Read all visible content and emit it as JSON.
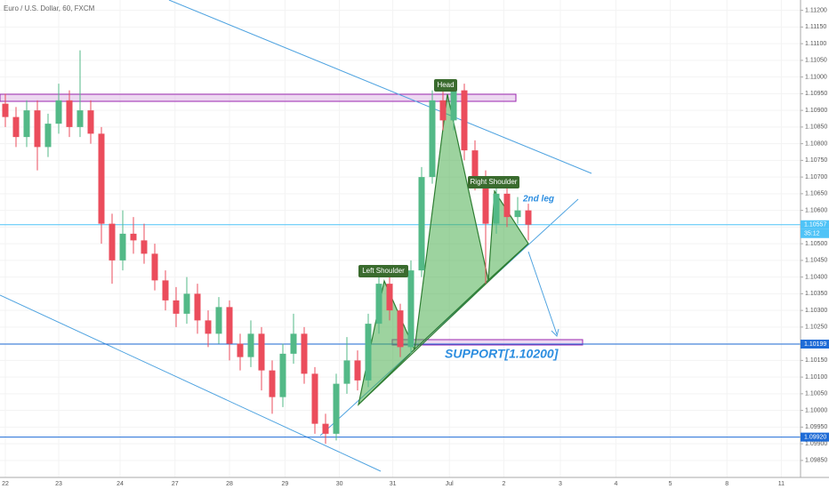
{
  "chart_data": {
    "type": "candlestick",
    "title": "Euro / U.S. Dollar, 60, FXCM",
    "x": [
      0,
      1,
      2,
      3,
      4,
      5,
      6,
      7,
      8,
      9,
      10,
      11,
      12,
      13,
      14,
      15,
      16,
      17,
      18,
      19,
      20,
      21,
      22,
      23,
      24,
      25,
      26,
      27,
      28,
      29,
      30,
      31,
      32,
      33,
      34,
      35,
      36,
      37,
      38,
      39,
      40,
      41,
      42,
      43,
      44,
      45,
      46,
      47,
      48,
      49
    ],
    "open": [
      1.1092,
      1.1088,
      1.1082,
      1.109,
      1.1079,
      1.1086,
      1.1093,
      1.1085,
      1.109,
      1.1083,
      1.1056,
      1.1045,
      1.1053,
      1.1051,
      1.1047,
      1.1039,
      1.1033,
      1.1029,
      1.1035,
      1.1027,
      1.1023,
      1.1031,
      1.102,
      1.1016,
      1.1023,
      1.1012,
      1.1004,
      1.1017,
      1.1023,
      1.1011,
      1.0996,
      1.0993,
      1.1008,
      1.1015,
      1.1009,
      1.1026,
      1.1038,
      1.103,
      1.1019,
      1.1042,
      1.107,
      1.1093,
      1.1087,
      1.1096,
      1.1078,
      1.107,
      1.1056,
      1.1065,
      1.1058,
      1.106
    ],
    "high": [
      1.1095,
      1.1091,
      1.1093,
      1.1093,
      1.1089,
      1.1098,
      1.1096,
      1.1108,
      1.1093,
      1.1085,
      1.1059,
      1.106,
      1.1058,
      1.1056,
      1.105,
      1.1042,
      1.1037,
      1.104,
      1.1038,
      1.103,
      1.1034,
      1.1033,
      1.1023,
      1.1027,
      1.1025,
      1.1015,
      1.102,
      1.1029,
      1.1025,
      1.1013,
      1.0999,
      1.1011,
      1.1022,
      1.1018,
      1.1029,
      1.1041,
      1.104,
      1.1032,
      1.1045,
      1.1073,
      1.1096,
      1.1098,
      1.1099,
      1.1098,
      1.1081,
      1.1072,
      1.1068,
      1.1067,
      1.1064,
      1.1062
    ],
    "low": [
      1.1085,
      1.1079,
      1.1079,
      1.1072,
      1.1076,
      1.1083,
      1.1082,
      1.1082,
      1.108,
      1.105,
      1.1038,
      1.1042,
      1.1047,
      1.1044,
      1.1036,
      1.103,
      1.1025,
      1.1026,
      1.1023,
      1.1019,
      1.102,
      1.1015,
      1.1012,
      1.1013,
      1.1006,
      1.0999,
      1.1001,
      1.1014,
      1.1008,
      1.0993,
      1.099,
      1.0991,
      1.1005,
      1.1006,
      1.1007,
      1.1023,
      1.1027,
      1.1016,
      1.1017,
      1.104,
      1.1068,
      1.1084,
      1.1084,
      1.1075,
      1.1066,
      1.1038,
      1.1053,
      1.1055,
      1.1056,
      1.1051
    ],
    "close": [
      1.1088,
      1.1082,
      1.109,
      1.1079,
      1.1086,
      1.1093,
      1.1085,
      1.109,
      1.1083,
      1.1056,
      1.1045,
      1.1053,
      1.1051,
      1.1047,
      1.1039,
      1.1033,
      1.1029,
      1.1035,
      1.1027,
      1.1023,
      1.1031,
      1.102,
      1.1016,
      1.1023,
      1.1012,
      1.1004,
      1.1017,
      1.1023,
      1.1011,
      1.0996,
      1.0993,
      1.1008,
      1.1015,
      1.1009,
      1.1026,
      1.1038,
      1.103,
      1.1019,
      1.1042,
      1.107,
      1.1093,
      1.1087,
      1.1096,
      1.1078,
      1.107,
      1.1056,
      1.1065,
      1.1058,
      1.106,
      1.10557
    ],
    "up_color": "#53b987",
    "down_color": "#eb4d5c",
    "xlim": [
      -0.5,
      74.5
    ],
    "ylim": [
      1.09799,
      1.11231
    ],
    "xticks": [
      {
        "value": 0,
        "label": "22"
      },
      {
        "value": 5,
        "label": "23"
      },
      {
        "value": 10.75,
        "label": "24"
      },
      {
        "value": 15.9,
        "label": "27"
      },
      {
        "value": 21,
        "label": "28"
      },
      {
        "value": 26.2,
        "label": "29"
      },
      {
        "value": 31.3,
        "label": "30"
      },
      {
        "value": 36.3,
        "label": "31"
      },
      {
        "value": 41.6,
        "label": "Jul"
      },
      {
        "value": 46.7,
        "label": "2"
      },
      {
        "value": 52,
        "label": "3"
      },
      {
        "value": 57.2,
        "label": "4"
      },
      {
        "value": 62.3,
        "label": "5"
      },
      {
        "value": 67.6,
        "label": "8"
      },
      {
        "value": 72.7,
        "label": "11"
      }
    ],
    "yticks": [
      {
        "value": 1.0985,
        "label": "1.09850"
      },
      {
        "value": 1.099,
        "label": "1.09900"
      },
      {
        "value": 1.0995,
        "label": "1.09950"
      },
      {
        "value": 1.1,
        "label": "1.10000"
      },
      {
        "value": 1.1005,
        "label": "1.10050"
      },
      {
        "value": 1.101,
        "label": "1.10100"
      },
      {
        "value": 1.1015,
        "label": "1.10150"
      },
      {
        "value": 1.102,
        "label": "1.10200"
      },
      {
        "value": 1.1025,
        "label": "1.10250"
      },
      {
        "value": 1.103,
        "label": "1.10300"
      },
      {
        "value": 1.1035,
        "label": "1.10350"
      },
      {
        "value": 1.104,
        "label": "1.10400"
      },
      {
        "value": 1.1045,
        "label": "1.10450"
      },
      {
        "value": 1.105,
        "label": "1.10500"
      },
      {
        "value": 1.1055,
        "label": "1.10550"
      },
      {
        "value": 1.106,
        "label": "1.10600"
      },
      {
        "value": 1.1065,
        "label": "1.10650"
      },
      {
        "value": 1.107,
        "label": "1.10700"
      },
      {
        "value": 1.1075,
        "label": "1.10750"
      },
      {
        "value": 1.108,
        "label": "1.10800"
      },
      {
        "value": 1.1085,
        "label": "1.10850"
      },
      {
        "value": 1.109,
        "label": "1.10900"
      },
      {
        "value": 1.1095,
        "label": "1.10950"
      },
      {
        "value": 1.11,
        "label": "1.11000"
      },
      {
        "value": 1.1105,
        "label": "1.11050"
      },
      {
        "value": 1.111,
        "label": "1.11100"
      },
      {
        "value": 1.1115,
        "label": "1.11150"
      },
      {
        "value": 1.112,
        "label": "1.11200"
      }
    ],
    "price_lines": [
      {
        "value": 1.10557,
        "color": "#4fc3f7"
      },
      {
        "value": 1.10199,
        "color": "#1e6bd6"
      },
      {
        "value": {
          "value": 1.0992,
          "label": "1.09920"
        },
        "color": "#1e6bd6"
      }
    ],
    "countdown": "35:12",
    "annotations": {
      "head": "Head",
      "left_shoulder": "Left Shoulder",
      "right_shoulder": "Right Shoulder",
      "second_leg": "2nd leg",
      "support": "SUPPORT[1.10200]"
    }
  }
}
